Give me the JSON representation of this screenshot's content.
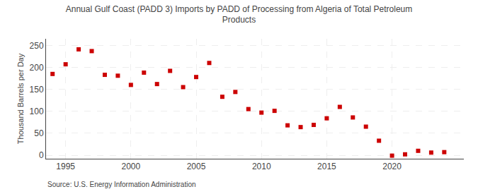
{
  "chart_data": {
    "type": "scatter",
    "title": "Annual Gulf Coast (PADD 3) Imports by PADD of Processing from Algeria of Total Petroleum\nProducts",
    "ylabel": "Thousand Barrels per Day",
    "annotations": [
      "Source: U.S. Energy Information Administration"
    ],
    "x": [
      1994,
      1995,
      1996,
      1997,
      1998,
      1999,
      2000,
      2001,
      2002,
      2003,
      2004,
      2005,
      2006,
      2007,
      2008,
      2009,
      2010,
      2011,
      2012,
      2013,
      2014,
      2015,
      2016,
      2017,
      2018,
      2019,
      2020,
      2021,
      2022,
      2023,
      2024
    ],
    "values": [
      185,
      207,
      241,
      237,
      183,
      181,
      160,
      188,
      162,
      192,
      155,
      178,
      210,
      133,
      144,
      105,
      97,
      101,
      68,
      64,
      69,
      84,
      110,
      86,
      65,
      33,
      -1,
      2,
      10,
      6,
      7
    ],
    "color": "#cc0000",
    "marker": "square",
    "xlim": [
      1993.5,
      2025.5
    ],
    "xticks": [
      1995,
      2000,
      2005,
      2010,
      2015,
      2020
    ],
    "ylim": [
      -8,
      265
    ],
    "yticks": [
      0,
      50,
      100,
      150,
      200,
      250
    ],
    "grid": true
  }
}
